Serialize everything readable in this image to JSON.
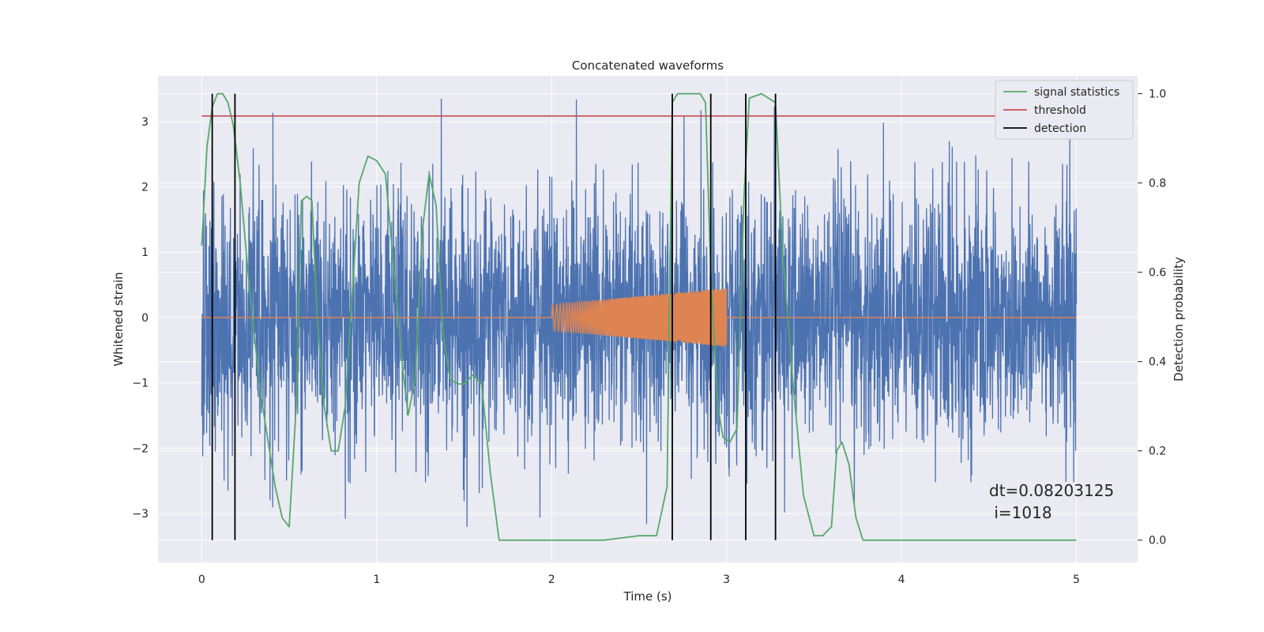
{
  "chart_data": {
    "type": "line",
    "title": "Concatenated waveforms",
    "xlabel": "Time (s)",
    "ylabel": "Whitened strain",
    "y2label": "Detection probability",
    "xlim": [
      -0.25,
      5.35
    ],
    "ylim": [
      -3.75,
      3.7
    ],
    "y2lim": [
      -0.05,
      1.04
    ],
    "xticks": [
      0,
      1,
      2,
      3,
      4,
      5
    ],
    "yticks": [
      -3,
      -2,
      -1,
      0,
      1,
      2,
      3
    ],
    "y2ticks": [
      0.0,
      0.2,
      0.4,
      0.6,
      0.8,
      1.0
    ],
    "y2tick_labels": [
      "0.0",
      "0.2",
      "0.4",
      "0.6",
      "0.8",
      "1.0"
    ],
    "grid": true,
    "legend_position": "top-right",
    "series": [
      {
        "name": "",
        "axis": "left",
        "kind": "noise",
        "color": "#4c72b0",
        "x_range": [
          0,
          5
        ],
        "typical_amplitude": 1.0,
        "peak_max": 3.35,
        "peak_min": -3.3
      },
      {
        "name": "",
        "axis": "left",
        "kind": "chirp",
        "color": "#dd8452",
        "x_range": [
          0,
          5
        ],
        "active_range": [
          2.0,
          3.0
        ],
        "amplitude_start": 0.2,
        "amplitude_end": 0.45
      },
      {
        "name": "signal statistics",
        "axis": "right",
        "color": "#55a868",
        "x": [
          0.0,
          0.03,
          0.06,
          0.09,
          0.12,
          0.15,
          0.18,
          0.22,
          0.26,
          0.3,
          0.34,
          0.38,
          0.42,
          0.46,
          0.5,
          0.54,
          0.57,
          0.6,
          0.63,
          0.66,
          0.7,
          0.74,
          0.78,
          0.82,
          0.86,
          0.9,
          0.95,
          1.0,
          1.05,
          1.1,
          1.15,
          1.18,
          1.22,
          1.26,
          1.3,
          1.34,
          1.38,
          1.42,
          1.46,
          1.5,
          1.55,
          1.6,
          1.65,
          1.7,
          1.8,
          2.0,
          2.3,
          2.5,
          2.6,
          2.66,
          2.69,
          2.72,
          2.75,
          2.85,
          2.88,
          2.91,
          2.95,
          2.98,
          3.02,
          3.06,
          3.1,
          3.13,
          3.2,
          3.28,
          3.32,
          3.38,
          3.44,
          3.5,
          3.55,
          3.6,
          3.63,
          3.66,
          3.7,
          3.74,
          3.78,
          3.82,
          4.0,
          5.0
        ],
        "y": [
          0.66,
          0.88,
          0.97,
          1.0,
          1.0,
          0.98,
          0.93,
          0.8,
          0.62,
          0.46,
          0.32,
          0.22,
          0.12,
          0.05,
          0.03,
          0.3,
          0.76,
          0.77,
          0.76,
          0.5,
          0.3,
          0.2,
          0.2,
          0.3,
          0.55,
          0.8,
          0.86,
          0.85,
          0.82,
          0.6,
          0.38,
          0.28,
          0.36,
          0.69,
          0.82,
          0.75,
          0.46,
          0.36,
          0.35,
          0.35,
          0.37,
          0.35,
          0.15,
          0.0,
          0.0,
          0.0,
          0.0,
          0.01,
          0.01,
          0.12,
          0.98,
          1.0,
          1.0,
          1.0,
          0.98,
          0.6,
          0.3,
          0.23,
          0.22,
          0.25,
          0.77,
          0.99,
          1.0,
          0.98,
          0.65,
          0.35,
          0.1,
          0.01,
          0.01,
          0.03,
          0.2,
          0.22,
          0.17,
          0.05,
          0.0,
          0.0,
          0.0,
          0.0
        ]
      },
      {
        "name": "threshold",
        "axis": "right",
        "color": "#c44e52",
        "x": [
          0.0,
          5.0
        ],
        "y": [
          0.95,
          0.95
        ]
      },
      {
        "name": "detection",
        "axis": "right",
        "color": "#000000",
        "x": [
          0.06,
          0.19,
          2.69,
          2.91,
          3.11,
          3.28
        ],
        "y_range": [
          0.0,
          1.0
        ]
      }
    ],
    "annotations": [
      "dt=0.08203125",
      " i=1018"
    ],
    "background_color": "#eaeaf2"
  }
}
